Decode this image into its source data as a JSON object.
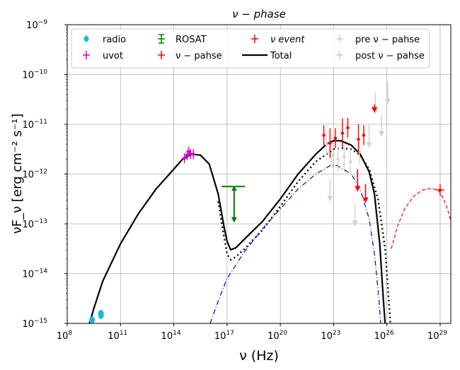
{
  "chart_data": {
    "type": "scatter",
    "title": "ν − phase",
    "xlabel": "ν (Hz)",
    "ylabel": "νF_ν [erg cm⁻² s⁻¹]",
    "x_scale": "log",
    "y_scale": "log",
    "xlim_log10": [
      8,
      29.6
    ],
    "ylim_log10": [
      -15,
      -9
    ],
    "grid": true,
    "x_ticks": [
      {
        "log": 8,
        "base": "10",
        "exp": "8"
      },
      {
        "log": 11,
        "base": "10",
        "exp": "11"
      },
      {
        "log": 14,
        "base": "10",
        "exp": "14"
      },
      {
        "log": 17,
        "base": "10",
        "exp": "17"
      },
      {
        "log": 20,
        "base": "10",
        "exp": "20"
      },
      {
        "log": 23,
        "base": "10",
        "exp": "23"
      },
      {
        "log": 26,
        "base": "10",
        "exp": "26"
      },
      {
        "log": 29,
        "base": "10",
        "exp": "29"
      }
    ],
    "y_ticks": [
      {
        "log": -15,
        "base": "10",
        "exp": "−15"
      },
      {
        "log": -14,
        "base": "10",
        "exp": "−14"
      },
      {
        "log": -13,
        "base": "10",
        "exp": "−13"
      },
      {
        "log": -12,
        "base": "10",
        "exp": "−12"
      },
      {
        "log": -11,
        "base": "10",
        "exp": "−11"
      },
      {
        "log": -10,
        "base": "10",
        "exp": "−10"
      },
      {
        "log": -9,
        "base": "10",
        "exp": "−9"
      }
    ],
    "legend": {
      "placement": "top",
      "entries": [
        {
          "key": "radio",
          "label": "radio"
        },
        {
          "key": "uvot",
          "label": "uvot"
        },
        {
          "key": "rosat",
          "label": "ROSAT"
        },
        {
          "key": "vphase",
          "label": "ν − pahse"
        },
        {
          "key": "vevent",
          "label": "ν event"
        },
        {
          "key": "total",
          "label": "Total"
        },
        {
          "key": "pre",
          "label": "pre ν − pahse"
        },
        {
          "key": "post",
          "label": "post ν − pahse"
        }
      ]
    },
    "colors": {
      "radio": "#17becf",
      "uvot": "#cc00cc",
      "rosat": "#008000",
      "vphase": "#ff0000",
      "vevent": "#ff0000",
      "total": "#000000",
      "pre": "#d3d3d3",
      "post": "#d3d3d3",
      "ssc": "#0000cc",
      "hadronic": "#ff0000",
      "alt_model": "#000000",
      "grid": "#b0b0b0"
    },
    "series": [
      {
        "name": "Total",
        "kind": "line",
        "style": "solid",
        "points": [
          [
            9.25,
            -15.0
          ],
          [
            9.5,
            -14.7
          ],
          [
            10,
            -14.15
          ],
          [
            11,
            -13.4
          ],
          [
            12,
            -12.8
          ],
          [
            13,
            -12.3
          ],
          [
            14,
            -11.9
          ],
          [
            14.5,
            -11.7
          ],
          [
            15,
            -11.6
          ],
          [
            15.5,
            -11.62
          ],
          [
            16,
            -11.8
          ],
          [
            16.5,
            -12.4
          ],
          [
            16.8,
            -13.0
          ],
          [
            17,
            -13.35
          ],
          [
            17.2,
            -13.52
          ],
          [
            17.5,
            -13.48
          ],
          [
            18,
            -13.3
          ],
          [
            19,
            -12.95
          ],
          [
            20,
            -12.5
          ],
          [
            21,
            -12.0
          ],
          [
            22,
            -11.6
          ],
          [
            22.6,
            -11.4
          ],
          [
            23,
            -11.33
          ],
          [
            23.4,
            -11.33
          ],
          [
            24,
            -11.42
          ],
          [
            24.5,
            -11.6
          ],
          [
            25,
            -11.95
          ],
          [
            25.3,
            -12.4
          ],
          [
            25.6,
            -13.4
          ],
          [
            25.8,
            -14.5
          ],
          [
            25.9,
            -15.0
          ]
        ]
      },
      {
        "name": "Total (alternative)",
        "kind": "line",
        "style": "dotted",
        "points": [
          [
            16.5,
            -12.55
          ],
          [
            16.8,
            -13.2
          ],
          [
            17.0,
            -13.6
          ],
          [
            17.2,
            -13.72
          ],
          [
            17.5,
            -13.66
          ],
          [
            18,
            -13.5
          ],
          [
            19,
            -13.12
          ],
          [
            20,
            -12.65
          ],
          [
            21,
            -12.15
          ],
          [
            22,
            -11.75
          ],
          [
            23,
            -11.5
          ],
          [
            23.5,
            -11.48
          ],
          [
            24,
            -11.5
          ],
          [
            24.5,
            -11.62
          ],
          [
            25,
            -11.9
          ],
          [
            25.5,
            -12.5
          ],
          [
            25.9,
            -13.5
          ],
          [
            26.1,
            -14.5
          ],
          [
            26.2,
            -15.0
          ]
        ]
      },
      {
        "name": "SSC component",
        "kind": "line",
        "style": "dashdot",
        "points": [
          [
            16.05,
            -15.0
          ],
          [
            16.5,
            -14.55
          ],
          [
            17,
            -14.1
          ],
          [
            18,
            -13.55
          ],
          [
            19,
            -13.1
          ],
          [
            20,
            -12.7
          ],
          [
            21,
            -12.3
          ],
          [
            22,
            -12.0
          ],
          [
            22.8,
            -11.83
          ],
          [
            23.2,
            -11.83
          ],
          [
            24,
            -12.0
          ],
          [
            24.5,
            -12.3
          ],
          [
            25,
            -12.9
          ],
          [
            25.3,
            -13.6
          ],
          [
            25.55,
            -14.5
          ],
          [
            25.65,
            -15.0
          ]
        ]
      },
      {
        "name": "Hadronic component",
        "kind": "line",
        "style": "dashed",
        "points": [
          [
            26.25,
            -13.5
          ],
          [
            26.6,
            -13.05
          ],
          [
            27,
            -12.7
          ],
          [
            27.5,
            -12.45
          ],
          [
            28,
            -12.32
          ],
          [
            28.5,
            -12.29
          ],
          [
            28.9,
            -12.32
          ],
          [
            29.2,
            -12.5
          ],
          [
            29.5,
            -12.8
          ],
          [
            29.6,
            -12.95
          ]
        ]
      },
      {
        "name": "radio",
        "kind": "points",
        "points": [
          [
            9.4,
            -14.93
          ],
          [
            9.9,
            -14.8
          ],
          [
            9.9,
            -14.84
          ]
        ]
      },
      {
        "name": "uvot",
        "kind": "errorbars",
        "points": [
          [
            14.6,
            -11.68
          ],
          [
            14.75,
            -11.62
          ],
          [
            14.85,
            -11.55
          ],
          [
            14.95,
            -11.6
          ],
          [
            15.1,
            -11.6
          ]
        ]
      },
      {
        "name": "ROSAT",
        "kind": "upper_limits",
        "points": [
          [
            17.4,
            -12.25
          ]
        ],
        "x_range": [
          16.7,
          18.0
        ],
        "y_range": [
          -12.25,
          -12.95
        ]
      },
      {
        "name": "ν − pahse",
        "kind": "errorbars",
        "points": [
          [
            22.45,
            -11.22
          ],
          [
            22.8,
            -11.38
          ],
          [
            23.1,
            -11.28
          ],
          [
            23.5,
            -11.18
          ],
          [
            23.8,
            -11.07
          ],
          [
            24.4,
            -11.3
          ],
          [
            24.7,
            -11.22
          ]
        ]
      },
      {
        "name": "ν event",
        "kind": "point",
        "points": [
          [
            29.0,
            -12.32
          ]
        ]
      },
      {
        "name": "pre ν − pahse",
        "kind": "errorbars",
        "points": [
          [
            22.6,
            -11.4
          ],
          [
            22.9,
            -11.62
          ],
          [
            23.25,
            -11.7
          ],
          [
            23.6,
            -11.65
          ],
          [
            23.95,
            -11.75
          ],
          [
            24.45,
            -11.55
          ]
        ]
      },
      {
        "name": "post ν − pahse",
        "kind": "upper_limits",
        "points": [
          [
            22.8,
            -12.1
          ],
          [
            24.2,
            -12.6
          ],
          [
            25.0,
            -11.02
          ],
          [
            25.35,
            -10.35
          ],
          [
            25.7,
            -10.8
          ],
          [
            26.05,
            -10.15
          ]
        ]
      }
    ]
  }
}
